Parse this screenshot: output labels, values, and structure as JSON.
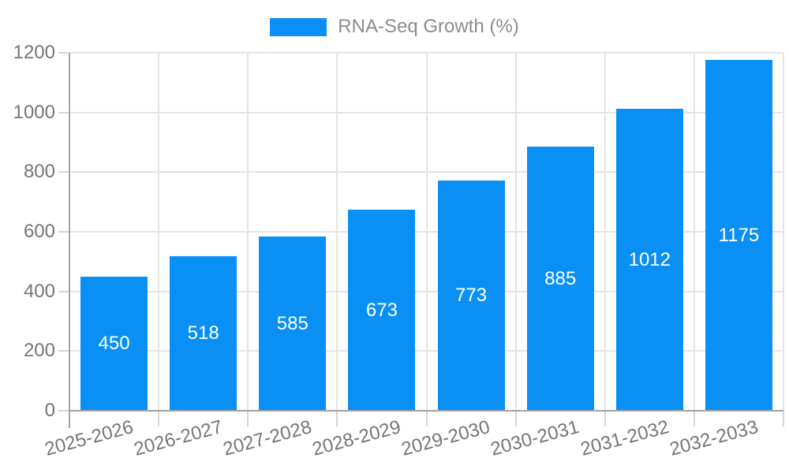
{
  "legend": {
    "label": "RNA-Seq Growth (%)"
  },
  "colors": {
    "bar": "#0a90f5",
    "grid": "#e4e4e4",
    "tick": "#d6d6d6",
    "axis": "#a3a3a3",
    "tick_label": "#757575",
    "legend_text": "#8c8c8c",
    "value_label": "#ffffff",
    "background": "#ffffff"
  },
  "chart_data": {
    "type": "bar",
    "title": "RNA-Seq Growth (%)",
    "series_name": "RNA-Seq Growth (%)",
    "categories": [
      "2025-2026",
      "2026-2027",
      "2027-2028",
      "2028-2029",
      "2029-2030",
      "2030-2031",
      "2031-2032",
      "2032-2033"
    ],
    "values": [
      450,
      518,
      585,
      673,
      773,
      885,
      1012,
      1175
    ],
    "xlabel": "",
    "ylabel": "",
    "ylim": [
      0,
      1200
    ],
    "ytick_interval": 200,
    "yticks": [
      0,
      200,
      400,
      600,
      800,
      1000,
      1200
    ],
    "grid": true,
    "legend_position": "top-center",
    "bar_color": "#0a90f5",
    "value_label_color": "#ffffff",
    "value_label_position": "inside-center",
    "x_label_rotation_deg": -15
  }
}
